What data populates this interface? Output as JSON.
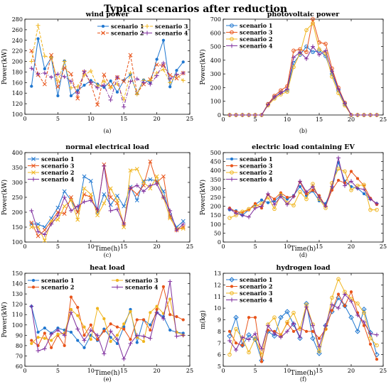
{
  "figure_title": "Typical scenarios after reduction",
  "colors": {
    "scenario_1": "#1f77d0",
    "scenario_2": "#e8541a",
    "scenario_3": "#f0b51e",
    "scenario_4": "#7f2f9e"
  },
  "chart_data": [
    {
      "type": "line",
      "title": "wind power",
      "xlabel": "",
      "ylabel": "Power(kW)",
      "sublabel": "(a)",
      "xlim": [
        0,
        25
      ],
      "ylim": [
        100,
        280
      ],
      "xticks": [
        0,
        5,
        10,
        15,
        20,
        25
      ],
      "yticks": [
        100,
        120,
        140,
        160,
        180,
        200,
        220,
        240,
        260,
        280
      ],
      "legend_position": "top-right",
      "legend_cols": 2,
      "x": [
        1,
        2,
        3,
        4,
        5,
        6,
        7,
        8,
        9,
        10,
        11,
        12,
        13,
        14,
        15,
        16,
        17,
        18,
        19,
        20,
        21,
        22,
        23,
        24
      ],
      "series": [
        {
          "name": "scenario 1",
          "color_key": "scenario_1",
          "style": "solid",
          "marker": "dot",
          "values": [
            153,
            243,
            186,
            207,
            135,
            201,
            135,
            145,
            155,
            164,
            157,
            151,
            163,
            142,
            164,
            175,
            139,
            165,
            160,
            204,
            240,
            152,
            183,
            199
          ]
        },
        {
          "name": "scenario 2",
          "color_key": "scenario_2",
          "style": "dashed",
          "marker": "x",
          "values": [
            220,
            175,
            157,
            212,
            152,
            188,
            176,
            130,
            180,
            158,
            118,
            175,
            152,
            170,
            162,
            212,
            140,
            157,
            166,
            194,
            192,
            174,
            168,
            178
          ]
        },
        {
          "name": "scenario 3",
          "color_key": "scenario_3",
          "style": "dashed",
          "marker": "plus",
          "values": [
            200,
            268,
            210,
            207,
            163,
            200,
            150,
            152,
            174,
            182,
            153,
            163,
            150,
            158,
            128,
            178,
            138,
            164,
            164,
            178,
            185,
            160,
            174,
            164
          ]
        },
        {
          "name": "scenario 4",
          "color_key": "scenario_4",
          "style": "dashdot",
          "marker": "plus",
          "values": [
            187,
            176,
            178,
            170,
            176,
            171,
            162,
            140,
            181,
            160,
            150,
            155,
            127,
            170,
            114,
            162,
            167,
            160,
            157,
            173,
            197,
            167,
            175,
            178
          ]
        }
      ]
    },
    {
      "type": "line",
      "title": "photovoltaic power",
      "xlabel": "",
      "ylabel": "Power(kW)",
      "sublabel": "(b)",
      "xlim": [
        0,
        25
      ],
      "ylim": [
        0,
        700
      ],
      "xticks": [
        0,
        5,
        10,
        15,
        20,
        25
      ],
      "yticks": [
        0,
        100,
        200,
        300,
        400,
        500,
        600,
        700
      ],
      "legend_position": "top-left",
      "legend_cols": 1,
      "x": [
        1,
        2,
        3,
        4,
        5,
        6,
        7,
        8,
        9,
        10,
        11,
        12,
        13,
        14,
        15,
        16,
        17,
        18,
        19,
        20,
        21,
        22,
        23,
        24
      ],
      "series": [
        {
          "name": "scenario 1",
          "color_key": "scenario_1",
          "style": "solid",
          "marker": "circle",
          "values": [
            0,
            0,
            0,
            0,
            0,
            0,
            80,
            130,
            165,
            180,
            380,
            440,
            500,
            460,
            470,
            430,
            300,
            180,
            80,
            0,
            0,
            0,
            0,
            0
          ]
        },
        {
          "name": "scenario 3",
          "color_key": "scenario_2",
          "style": "solid",
          "marker": "circle",
          "values": [
            0,
            0,
            0,
            0,
            0,
            0,
            80,
            140,
            180,
            210,
            470,
            480,
            460,
            700,
            530,
            520,
            340,
            200,
            90,
            0,
            0,
            0,
            0,
            0
          ]
        },
        {
          "name": "scenario 2",
          "color_key": "scenario_3",
          "style": "solid",
          "marker": "circle",
          "values": [
            0,
            0,
            0,
            0,
            0,
            0,
            70,
            120,
            150,
            170,
            350,
            450,
            620,
            670,
            480,
            450,
            280,
            160,
            70,
            0,
            0,
            0,
            0,
            0
          ]
        },
        {
          "name": "scenario 4",
          "color_key": "scenario_4",
          "style": "solid",
          "marker": "plus",
          "values": [
            0,
            0,
            0,
            0,
            0,
            0,
            75,
            130,
            160,
            190,
            420,
            460,
            410,
            500,
            440,
            470,
            320,
            190,
            85,
            0,
            0,
            0,
            0,
            0
          ]
        }
      ]
    },
    {
      "type": "line",
      "title": "normal electrical load",
      "xlabel": "Time(h)",
      "ylabel": "Power(kW)",
      "sublabel": "(c)",
      "xlim": [
        0,
        25
      ],
      "ylim": [
        100,
        400
      ],
      "xticks": [
        0,
        5,
        10,
        15,
        20,
        25
      ],
      "yticks": [
        100,
        150,
        200,
        250,
        300,
        350,
        400
      ],
      "legend_position": "top-left",
      "legend_cols": 1,
      "x": [
        1,
        2,
        3,
        4,
        5,
        6,
        7,
        8,
        9,
        10,
        11,
        12,
        13,
        14,
        15,
        16,
        17,
        18,
        19,
        20,
        21,
        22,
        23,
        24
      ],
      "series": [
        {
          "name": "scenario 1",
          "color_key": "scenario_1",
          "style": "solid",
          "marker": "x",
          "values": [
            160,
            160,
            150,
            180,
            215,
            270,
            240,
            200,
            320,
            305,
            200,
            260,
            225,
            255,
            220,
            285,
            240,
            305,
            310,
            305,
            270,
            190,
            150,
            170
          ]
        },
        {
          "name": "scenario 3",
          "color_key": "scenario_2",
          "style": "solid",
          "marker": "x",
          "values": [
            165,
            120,
            140,
            170,
            200,
            195,
            250,
            200,
            260,
            250,
            205,
            360,
            250,
            230,
            160,
            280,
            260,
            290,
            370,
            300,
            320,
            185,
            140,
            150
          ]
        },
        {
          "name": "scenario 2",
          "color_key": "scenario_3",
          "style": "solid",
          "marker": "x",
          "values": [
            150,
            150,
            105,
            170,
            175,
            220,
            240,
            175,
            280,
            260,
            190,
            230,
            280,
            240,
            150,
            340,
            345,
            300,
            280,
            320,
            250,
            180,
            145,
            145
          ]
        },
        {
          "name": "scenario 4",
          "color_key": "scenario_4",
          "style": "solid",
          "marker": "plus",
          "values": [
            205,
            135,
            125,
            160,
            190,
            250,
            205,
            220,
            235,
            240,
            210,
            355,
            205,
            210,
            160,
            280,
            290,
            270,
            290,
            295,
            250,
            205,
            140,
            160
          ]
        }
      ]
    },
    {
      "type": "line",
      "title": "electric load containing EV",
      "xlabel": "Time(h)",
      "ylabel": "Power(kW)",
      "sublabel": "(d)",
      "xlim": [
        0,
        25
      ],
      "ylim": [
        0,
        500
      ],
      "xticks": [
        0,
        5,
        10,
        15,
        20,
        25
      ],
      "yticks": [
        0,
        50,
        100,
        150,
        200,
        250,
        300,
        350,
        400,
        450,
        500
      ],
      "legend_position": "top-left",
      "legend_cols": 1,
      "x": [
        1,
        2,
        3,
        4,
        5,
        6,
        7,
        8,
        9,
        10,
        11,
        12,
        13,
        14,
        15,
        16,
        17,
        18,
        19,
        20,
        21,
        22,
        23,
        24
      ],
      "series": [
        {
          "name": "scenario 1",
          "color_key": "scenario_1",
          "style": "solid",
          "marker": "dot",
          "values": [
            180,
            175,
            150,
            180,
            210,
            235,
            220,
            230,
            260,
            240,
            260,
            310,
            260,
            285,
            230,
            215,
            300,
            445,
            340,
            310,
            300,
            270,
            240,
            215
          ]
        },
        {
          "name": "scenario 3",
          "color_key": "scenario_2",
          "style": "solid",
          "marker": "dot",
          "values": [
            190,
            170,
            165,
            180,
            215,
            190,
            265,
            240,
            275,
            250,
            255,
            335,
            270,
            290,
            260,
            200,
            290,
            345,
            330,
            395,
            355,
            315,
            245,
            210
          ]
        },
        {
          "name": "scenario 2",
          "color_key": "scenario_3",
          "style": "solid",
          "marker": "circle",
          "values": [
            135,
            150,
            170,
            185,
            200,
            215,
            250,
            185,
            265,
            220,
            205,
            280,
            240,
            325,
            240,
            190,
            330,
            410,
            395,
            290,
            315,
            320,
            180,
            180
          ]
        },
        {
          "name": "scenario 4",
          "color_key": "scenario_4",
          "style": "solid",
          "marker": "plus",
          "values": [
            185,
            160,
            150,
            140,
            190,
            200,
            270,
            210,
            255,
            210,
            255,
            340,
            280,
            310,
            250,
            200,
            310,
            470,
            315,
            340,
            300,
            295,
            240,
            215
          ]
        }
      ]
    },
    {
      "type": "line",
      "title": "heat load",
      "xlabel": "Time(h)",
      "ylabel": "Power(kW)",
      "sublabel": "(e)",
      "xlim": [
        0,
        25
      ],
      "ylim": [
        60,
        150
      ],
      "xticks": [
        0,
        5,
        10,
        15,
        20,
        25
      ],
      "yticks": [
        60,
        70,
        80,
        90,
        100,
        110,
        120,
        130,
        140,
        150
      ],
      "legend_position": "top",
      "legend_cols": 2,
      "x": [
        1,
        2,
        3,
        4,
        5,
        6,
        7,
        8,
        9,
        10,
        11,
        12,
        13,
        14,
        15,
        16,
        17,
        18,
        19,
        20,
        21,
        22,
        23,
        24
      ],
      "series": [
        {
          "name": "scenario 1",
          "color_key": "scenario_1",
          "style": "solid",
          "marker": "dot",
          "values": [
            118,
            93,
            97,
            92,
            97,
            95,
            93,
            85,
            78,
            90,
            85,
            96,
            88,
            82,
            98,
            115,
            83,
            105,
            100,
            112,
            108,
            95,
            93,
            92
          ]
        },
        {
          "name": "scenario 2",
          "color_key": "scenario_2",
          "style": "solid",
          "marker": "dot",
          "values": [
            85,
            80,
            92,
            78,
            90,
            80,
            127,
            117,
            90,
            100,
            86,
            94,
            101,
            98,
            96,
            86,
            105,
            105,
            95,
            115,
            137,
            110,
            108,
            105
          ]
        },
        {
          "name": "scenario 3",
          "color_key": "scenario_3",
          "style": "solid",
          "marker": "dot",
          "values": [
            82,
            88,
            87,
            85,
            91,
            92,
            115,
            109,
            98,
            86,
            116,
            106,
            84,
            90,
            101,
            113,
            88,
            84,
            112,
            118,
            111,
            125,
            93,
            90
          ]
        },
        {
          "name": "scenario 4",
          "color_key": "scenario_4",
          "style": "solid",
          "marker": "plus",
          "values": [
            118,
            75,
            77,
            91,
            95,
            90,
            112,
            96,
            85,
            95,
            90,
            72,
            94,
            86,
            67,
            82,
            90,
            89,
            87,
            112,
            106,
            142,
            89,
            90
          ]
        }
      ]
    },
    {
      "type": "line",
      "title": "hydrogen load",
      "xlabel": "Time(h)",
      "ylabel": "m(kg)",
      "sublabel": "(f)",
      "xlim": [
        0,
        25
      ],
      "ylim": [
        5,
        13
      ],
      "xticks": [
        0,
        5,
        10,
        15,
        20,
        25
      ],
      "yticks": [
        5,
        6,
        7,
        8,
        9,
        10,
        11,
        12,
        13
      ],
      "legend_position": "top-left",
      "legend_cols": 1,
      "x": [
        1,
        2,
        3,
        4,
        5,
        6,
        7,
        8,
        9,
        10,
        11,
        12,
        13,
        14,
        15,
        16,
        17,
        18,
        19,
        20,
        21,
        22,
        23,
        24
      ],
      "series": [
        {
          "name": "scenario 1",
          "color_key": "scenario_1",
          "style": "solid",
          "marker": "diamond",
          "values": [
            7.6,
            9.2,
            6.8,
            7.7,
            7.3,
            5.5,
            8.0,
            7.6,
            9.2,
            9.7,
            8.6,
            7.4,
            10.4,
            7.4,
            6.1,
            8.5,
            9.7,
            10.9,
            10.2,
            9.2,
            8.0,
            9.9,
            7.9,
            6.0
          ]
        },
        {
          "name": "scenario 2",
          "color_key": "scenario_2",
          "style": "solid",
          "marker": "dot",
          "values": [
            8.0,
            7.0,
            6.8,
            9.2,
            9.2,
            5.4,
            8.1,
            8.0,
            7.7,
            8.7,
            8.0,
            8.3,
            8.0,
            8.0,
            7.4,
            8.2,
            9.8,
            11.2,
            10.2,
            11.4,
            9.6,
            8.5,
            6.9,
            5.6
          ]
        },
        {
          "name": "scenario 3",
          "color_key": "scenario_3",
          "style": "solid",
          "marker": "circle",
          "values": [
            6.0,
            8.2,
            7.4,
            6.2,
            7.4,
            6.0,
            8.6,
            9.2,
            7.6,
            8.8,
            9.6,
            8.2,
            10.3,
            8.6,
            6.3,
            8.2,
            10.9,
            12.5,
            11.4,
            10.8,
            10.4,
            9.6,
            7.4,
            6.8
          ]
        },
        {
          "name": "scenario 4",
          "color_key": "scenario_4",
          "style": "solid",
          "marker": "plus",
          "values": [
            7.2,
            6.4,
            7.5,
            7.3,
            7.8,
            6.5,
            8.5,
            7.8,
            7.5,
            8.0,
            8.7,
            7.5,
            10.1,
            8.5,
            6.7,
            8.5,
            10.3,
            10.0,
            11.2,
            10.6,
            9.4,
            8.8,
            7.8,
            7.7
          ]
        }
      ]
    }
  ]
}
